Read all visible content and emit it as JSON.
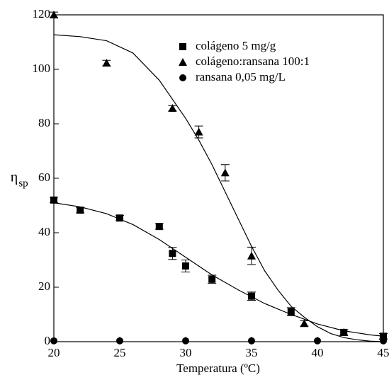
{
  "chart_data": {
    "type": "scatter",
    "xlabel": "Temperatura (ºC)",
    "ylabel": "η",
    "ylabel_sub": "sp",
    "xlim": [
      20,
      45
    ],
    "xticks": [
      20,
      25,
      30,
      35,
      40,
      45
    ],
    "ylim": [
      0,
      120
    ],
    "yticks": [
      0,
      20,
      40,
      60,
      80,
      100,
      120
    ],
    "legend": "upper right",
    "color": "#000000",
    "series": [
      {
        "name": "colágeno 5 mg/g",
        "marker": "square",
        "x": [
          20,
          22,
          25,
          28,
          29,
          30,
          32,
          35,
          38,
          42,
          45
        ],
        "values": [
          52,
          48.3,
          45.4,
          42.3,
          32.4,
          27.8,
          22.9,
          16.7,
          11,
          3.4,
          2
        ],
        "errors": [
          1,
          1,
          1,
          1,
          2.2,
          2.2,
          1.5,
          1.5,
          1.5,
          1,
          1
        ]
      },
      {
        "name": "colágeno:ransana 100:1",
        "marker": "triangle",
        "x": [
          20,
          24,
          29,
          31,
          33,
          35,
          39,
          42,
          45
        ],
        "values": [
          120,
          102.3,
          85.7,
          77,
          62,
          31.5,
          6.7,
          3.4,
          2
        ],
        "errors": [
          1,
          1,
          1,
          2.2,
          3,
          3.2,
          1,
          1,
          1
        ]
      },
      {
        "name": "ransana 0,05 mg/L",
        "marker": "circle",
        "x": [
          20,
          25,
          30,
          35,
          40,
          45
        ],
        "values": [
          0.3,
          0.3,
          0.3,
          0.3,
          0.3,
          0.3
        ]
      }
    ],
    "fits": [
      {
        "x": [
          20,
          22,
          24,
          26,
          28,
          30,
          31,
          32,
          33,
          34,
          35,
          36,
          37,
          38,
          39,
          40,
          41,
          42,
          43,
          44,
          45
        ],
        "values": [
          112.7,
          112,
          110.5,
          106,
          96,
          82,
          74,
          65,
          55,
          45,
          35,
          26,
          19,
          13,
          9,
          5.5,
          3,
          1.5,
          0.7,
          0.2,
          0
        ]
      },
      {
        "x": [
          20,
          22,
          24,
          26,
          28,
          30,
          32,
          34,
          36,
          38,
          40,
          42,
          44,
          45
        ],
        "values": [
          51,
          49.5,
          47,
          43,
          37.5,
          31,
          24.5,
          19,
          14,
          10,
          6.5,
          4,
          2.5,
          2
        ]
      }
    ]
  }
}
